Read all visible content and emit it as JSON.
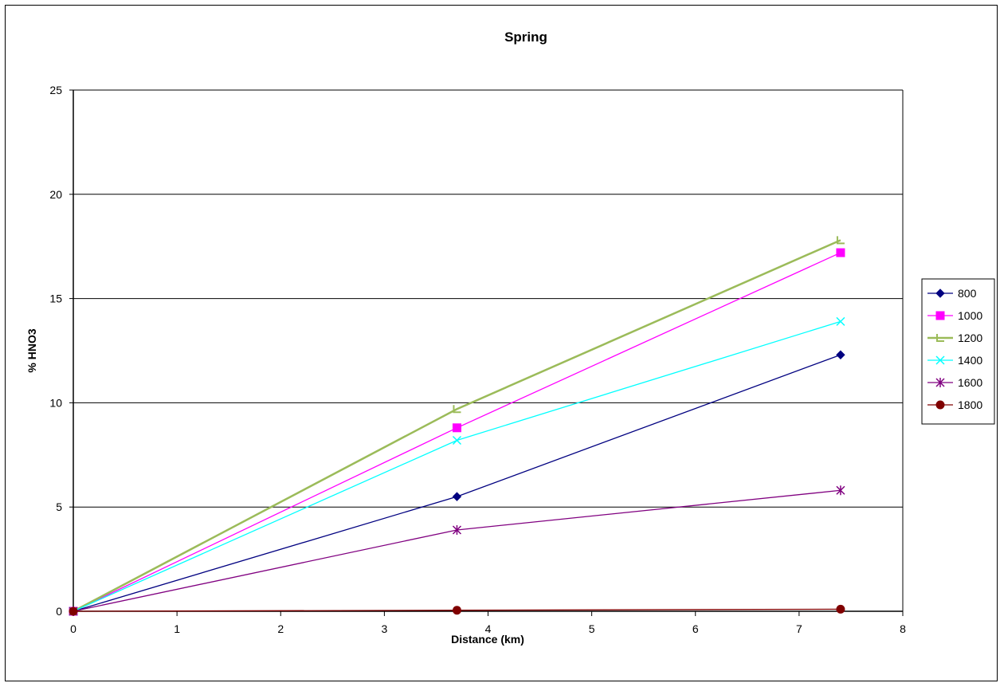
{
  "chart_data": {
    "type": "line",
    "title": "Spring",
    "xlabel": "Distance (km)",
    "ylabel": "% HNO3",
    "xlim": [
      0,
      8
    ],
    "ylim": [
      0,
      25
    ],
    "x_ticks": [
      "0",
      "1",
      "2",
      "3",
      "4",
      "5",
      "6",
      "7",
      "8"
    ],
    "y_ticks": [
      "0",
      "5",
      "10",
      "15",
      "20",
      "25"
    ],
    "grid": "horizontal major gridlines",
    "legend_position": "right",
    "series": [
      {
        "name": "800",
        "color": "#000080",
        "marker": "diamond",
        "x": [
          0,
          3.7,
          7.4
        ],
        "y": [
          0,
          5.5,
          12.3
        ]
      },
      {
        "name": "1000",
        "color": "#ff00ff",
        "marker": "square",
        "x": [
          0,
          3.7,
          7.4
        ],
        "y": [
          0,
          8.8,
          17.2
        ]
      },
      {
        "name": "1200",
        "color": "#9bbb59",
        "marker": "triangle",
        "x": [
          0,
          3.7,
          7.4
        ],
        "y": [
          0,
          9.7,
          17.8
        ]
      },
      {
        "name": "1400",
        "color": "#00ffff",
        "marker": "x",
        "x": [
          0,
          3.7,
          7.4
        ],
        "y": [
          0,
          8.2,
          13.9
        ]
      },
      {
        "name": "1600",
        "color": "#800080",
        "marker": "star",
        "x": [
          0,
          3.7,
          7.4
        ],
        "y": [
          0,
          3.9,
          5.8
        ]
      },
      {
        "name": "1800",
        "color": "#800000",
        "marker": "circle",
        "x": [
          0,
          3.7,
          7.4
        ],
        "y": [
          0,
          0.05,
          0.1
        ]
      }
    ]
  }
}
